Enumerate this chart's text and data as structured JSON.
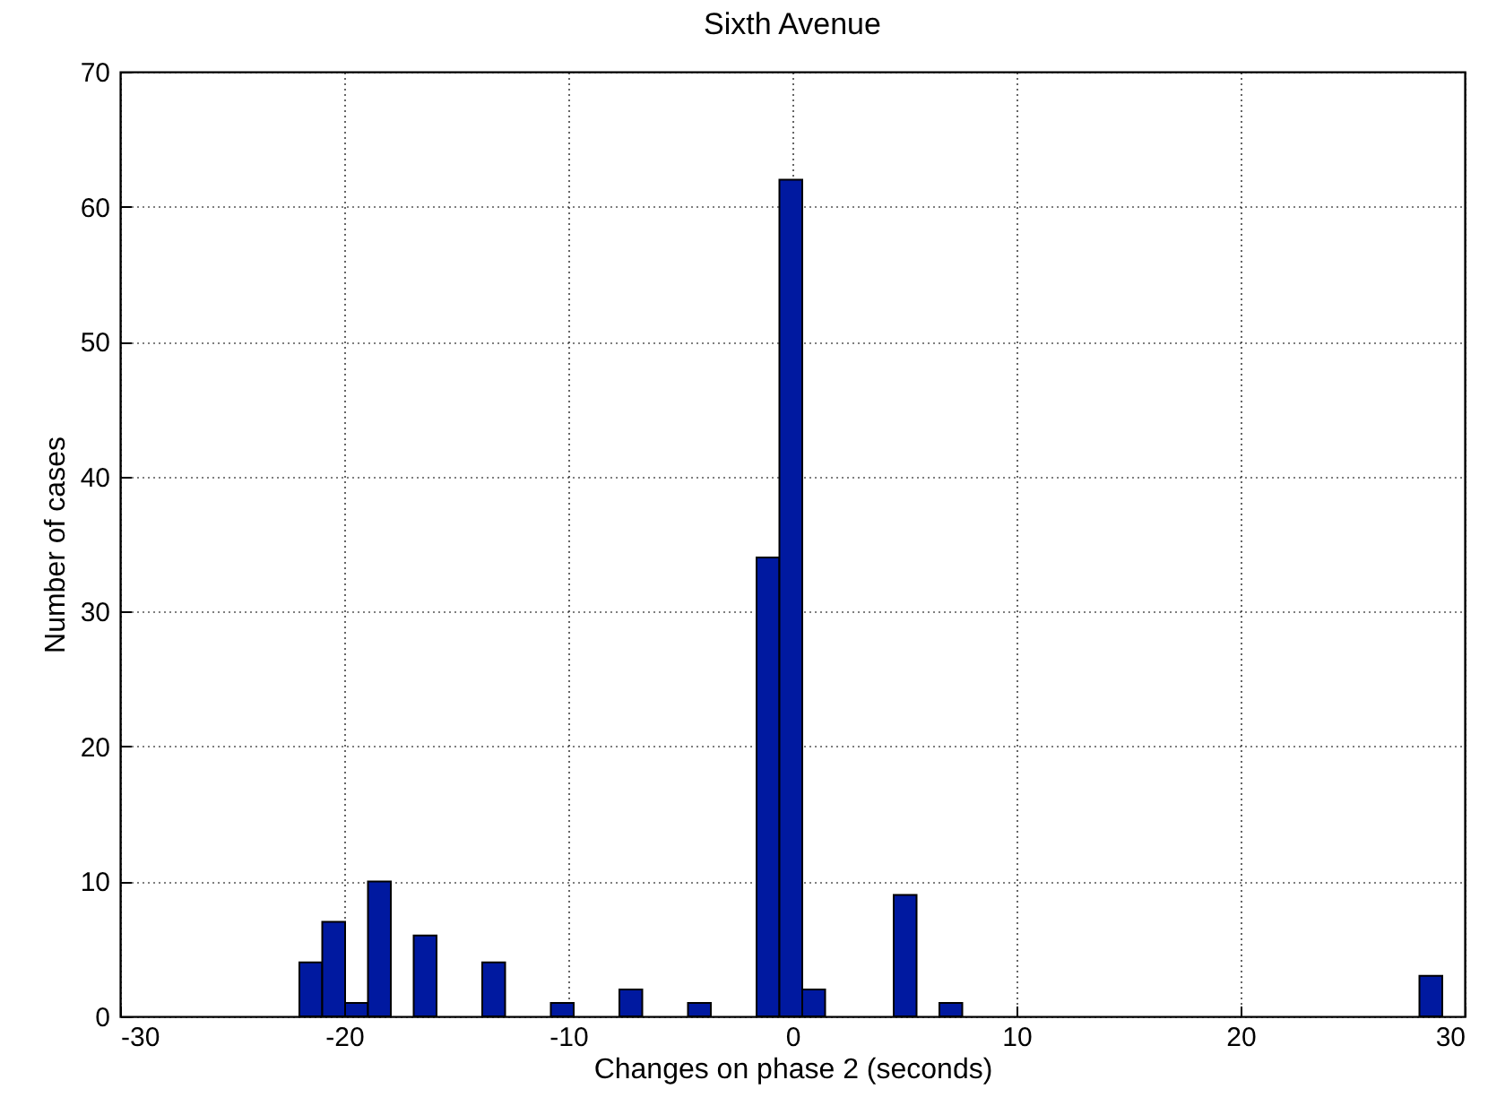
{
  "chart_data": {
    "type": "histogram",
    "title": "Sixth Avenue",
    "xlabel": "Changes on phase 2 (seconds)",
    "ylabel": "Number of cases",
    "bins": [
      -22,
      -20.98,
      -19.96,
      -18.94,
      -17.92,
      -16.9,
      -15.88,
      -14.86,
      -13.84,
      -12.82,
      -11.8,
      -10.78,
      -9.76,
      -8.74,
      -7.72,
      -6.7,
      -5.68,
      -4.66,
      -3.64,
      -2.62,
      -1.6,
      -0.58,
      0.44,
      1.46,
      2.48,
      3.5,
      4.52,
      5.54,
      6.56,
      7.58,
      8.6,
      9.62,
      10.64,
      11.66,
      12.68,
      13.7,
      14.72,
      15.74,
      16.76,
      17.78,
      18.8,
      19.82,
      20.84,
      21.86,
      22.88,
      23.9,
      24.92,
      25.94,
      26.96,
      27.98,
      29.0
    ],
    "values": [
      4,
      7,
      1,
      10,
      0,
      6,
      0,
      0,
      4,
      0,
      0,
      1,
      0,
      0,
      2,
      0,
      0,
      1,
      0,
      0,
      34,
      62,
      2,
      0,
      0,
      0,
      9,
      0,
      1,
      0,
      0,
      0,
      0,
      0,
      0,
      0,
      0,
      0,
      0,
      0,
      0,
      0,
      0,
      0,
      0,
      0,
      0,
      0,
      0,
      3
    ],
    "color": "#0019a0",
    "xlim": [
      -30,
      30
    ],
    "xticks": [
      -30,
      -20,
      -10,
      0,
      10,
      20,
      30
    ],
    "ylim": [
      0,
      70
    ],
    "yticks": [
      0,
      10,
      20,
      30,
      40,
      50,
      60,
      70
    ],
    "grid": true
  }
}
